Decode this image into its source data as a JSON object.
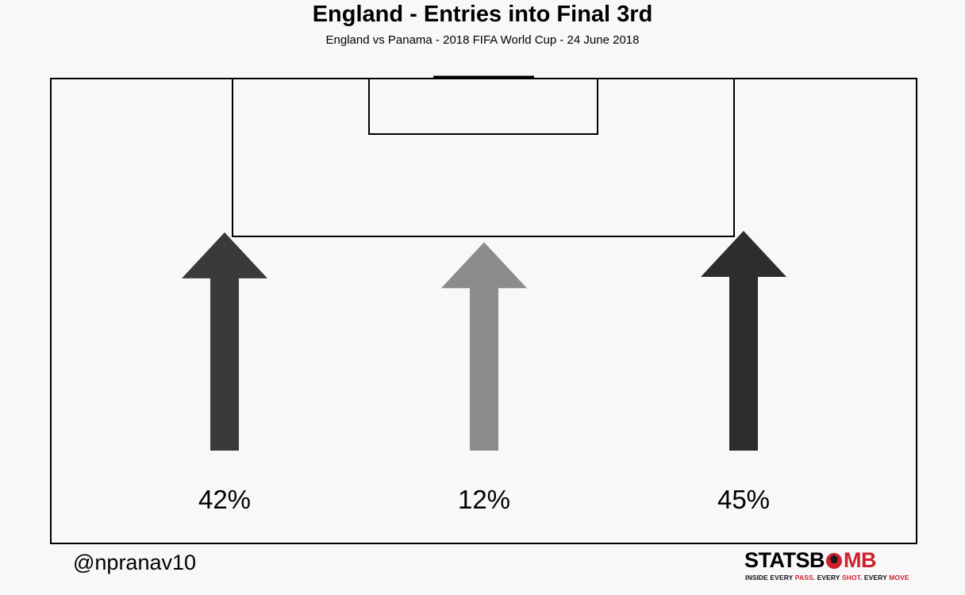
{
  "header": {
    "title": "England - Entries into Final 3rd",
    "subtitle": "England vs Panama  -  2018 FIFA World Cup  -  24 June 2018"
  },
  "footer": {
    "credit": "@npranav10",
    "logo": {
      "word_part1": "STATSB",
      "word_part2": "MB",
      "tagline_a": "INSIDE EVERY ",
      "tagline_pass": "PASS",
      "tagline_b": ". EVERY ",
      "tagline_shot": "SHOT",
      "tagline_c": ". EVERY ",
      "tagline_move": "MOVE"
    }
  },
  "colors": {
    "background": "#f8f8f8",
    "pitch_line": "#000000",
    "logo_red": "#d0202f"
  },
  "chart_data": {
    "type": "arrow",
    "categories": [
      "Left",
      "Centre",
      "Right"
    ],
    "values": [
      42,
      12,
      45
    ],
    "labels": [
      "42%",
      "12%",
      "45%"
    ],
    "colors": [
      "#3a3a3a",
      "#8c8c8c",
      "#2d2d2d"
    ],
    "title": "England - Entries into Final 3rd",
    "subtitle": "England vs Panama  -  2018 FIFA World Cup  -  24 June 2018"
  }
}
